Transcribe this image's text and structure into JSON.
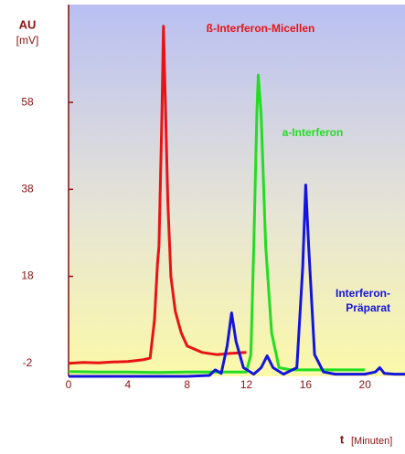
{
  "chart_data": {
    "type": "line",
    "y_label": "AU",
    "y_unit": "[mV]",
    "x_label": "t",
    "x_unit": "[Minuten]",
    "xlim": [
      0,
      22.7
    ],
    "xticks": [
      0,
      4,
      8,
      12,
      16,
      20
    ],
    "ylim": [
      -5,
      80.5
    ],
    "yticks": [
      -2,
      18,
      38,
      58
    ],
    "series": [
      {
        "name": "ß-Interferon-Micellen",
        "color": "#e81414",
        "x": [
          0,
          1,
          2,
          3,
          4,
          5,
          5.5,
          5.8,
          6.0,
          6.1,
          6.3,
          6.4,
          6.5,
          6.7,
          6.9,
          7.2,
          7.6,
          8,
          9,
          10,
          11,
          12
        ],
        "values": [
          -2,
          -1.8,
          -1.9,
          -1.7,
          -1.6,
          -1.2,
          -0.8,
          8,
          21,
          25,
          55,
          75.5,
          62,
          35,
          18,
          10,
          5,
          2,
          0.5,
          0,
          0.3,
          0.5
        ]
      },
      {
        "name": "a-Interferon",
        "color": "#22dd22",
        "x": [
          0,
          2,
          4,
          6,
          8,
          10,
          12,
          12.3,
          12.5,
          12.7,
          12.8,
          13,
          13.3,
          13.7,
          14.2,
          15,
          17,
          20
        ],
        "values": [
          -3.9,
          -4,
          -4,
          -4.1,
          -4,
          -4,
          -4,
          0,
          25,
          55,
          64.3,
          55,
          25,
          5,
          -3,
          -3.5,
          -3.5,
          -3.5
        ]
      },
      {
        "name": [
          "Interferon-",
          "Präparat"
        ],
        "color": "#1414dd",
        "x": [
          0,
          2,
          4,
          6,
          8,
          9.5,
          9.9,
          10.3,
          10.7,
          11,
          11.3,
          11.8,
          12.5,
          13,
          13.4,
          13.8,
          14.5,
          15.4,
          15.8,
          16,
          16.2,
          16.6,
          17.2,
          18,
          20,
          20.7,
          21,
          21.3,
          22,
          22.7
        ],
        "values": [
          -5,
          -5,
          -5,
          -5,
          -5,
          -4.8,
          -3.5,
          -4.3,
          2,
          9.6,
          3,
          -3,
          -4.5,
          -3,
          -0.3,
          -3,
          -4.5,
          -3,
          20,
          39,
          25,
          0,
          -4,
          -4.5,
          -4.5,
          -4,
          -3,
          -4.3,
          -4.5,
          -4.5
        ]
      }
    ]
  }
}
